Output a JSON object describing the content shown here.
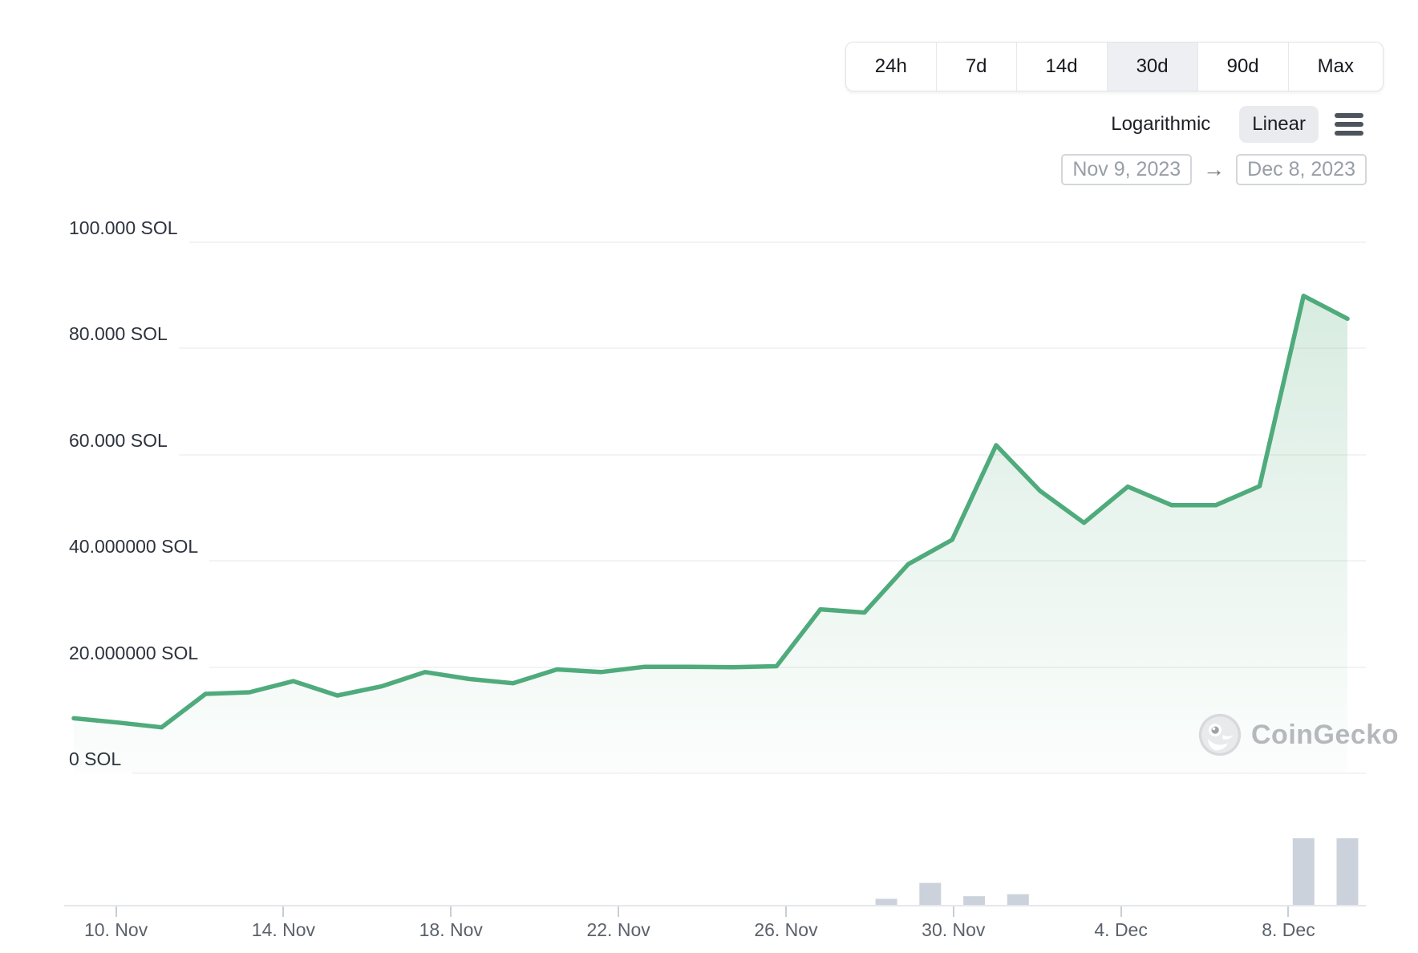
{
  "toolbar": {
    "time_ranges": [
      {
        "label": "24h",
        "active": false
      },
      {
        "label": "7d",
        "active": false
      },
      {
        "label": "14d",
        "active": false
      },
      {
        "label": "30d",
        "active": true
      },
      {
        "label": "90d",
        "active": false
      },
      {
        "label": "Max",
        "active": false
      }
    ],
    "scale_options": [
      {
        "label": "Logarithmic",
        "active": false
      },
      {
        "label": "Linear",
        "active": true
      }
    ],
    "date_range": {
      "from": "Nov 9, 2023",
      "arrow": "→",
      "to": "Dec 8, 2023"
    }
  },
  "watermark": {
    "brand": "CoinGecko"
  },
  "colors": {
    "line_green": "#4fab7c",
    "area_green_top": "rgba(85,172,124,0.24)",
    "area_green_bottom": "rgba(85,172,124,0.02)",
    "volume_bar": "#ccd2dc",
    "active_button_bg": "#edeff2",
    "gridline": "#f2f3f6",
    "axis_line": "#e4e7eb"
  },
  "chart_data": {
    "type": "area",
    "title": "",
    "unit": "SOL",
    "x": [
      "Nov 9",
      "Nov 10",
      "Nov 11",
      "Nov 12",
      "Nov 13",
      "Nov 14",
      "Nov 15",
      "Nov 16",
      "Nov 17",
      "Nov 18",
      "Nov 19",
      "Nov 20",
      "Nov 21",
      "Nov 22",
      "Nov 23",
      "Nov 24",
      "Nov 25",
      "Nov 26",
      "Nov 27",
      "Nov 28",
      "Nov 29",
      "Nov 30",
      "Dec 1",
      "Dec 2",
      "Dec 3",
      "Dec 4",
      "Dec 5",
      "Dec 6",
      "Dec 7",
      "Dec 8"
    ],
    "values": [
      10.2,
      9.4,
      8.5,
      14.8,
      15.1,
      17.2,
      14.5,
      16.2,
      18.9,
      17.6,
      16.8,
      19.4,
      18.9,
      19.9,
      19.9,
      19.8,
      20.0,
      30.7,
      30.1,
      39.2,
      43.8,
      61.6,
      53.0,
      47.0,
      53.8,
      50.3,
      50.3,
      53.9,
      89.7,
      85.4
    ],
    "ylim": [
      0,
      105
    ],
    "xlabel": "",
    "ylabel": "SOL",
    "grid": "horizontal",
    "legend_position": "none",
    "y_ticks": [
      {
        "value": 100,
        "label": "100.000 SOL"
      },
      {
        "value": 80,
        "label": "80.000 SOL"
      },
      {
        "value": 60,
        "label": "60.000 SOL"
      },
      {
        "value": 40,
        "label": "40.000000 SOL"
      },
      {
        "value": 20,
        "label": "20.000000 SOL"
      },
      {
        "value": 0,
        "label": "0 SOL"
      }
    ],
    "x_tick_labels": [
      "10. Nov",
      "14. Nov",
      "18. Nov",
      "22. Nov",
      "26. Nov",
      "30. Nov",
      "4. Dec",
      "8. Dec"
    ],
    "volume_bars": {
      "type": "bar",
      "entries": [
        {
          "label": "Nov 28",
          "pos": 18.5,
          "rel": 0.09
        },
        {
          "label": "Nov 29",
          "pos": 19.5,
          "rel": 0.33
        },
        {
          "label": "Nov 30",
          "pos": 20.5,
          "rel": 0.13
        },
        {
          "label": "Dec 1",
          "pos": 21.5,
          "rel": 0.16
        },
        {
          "label": "Dec 7",
          "pos": 28,
          "rel": 1.0
        },
        {
          "label": "Dec 8",
          "pos": 29,
          "rel": 1.0
        }
      ]
    }
  }
}
